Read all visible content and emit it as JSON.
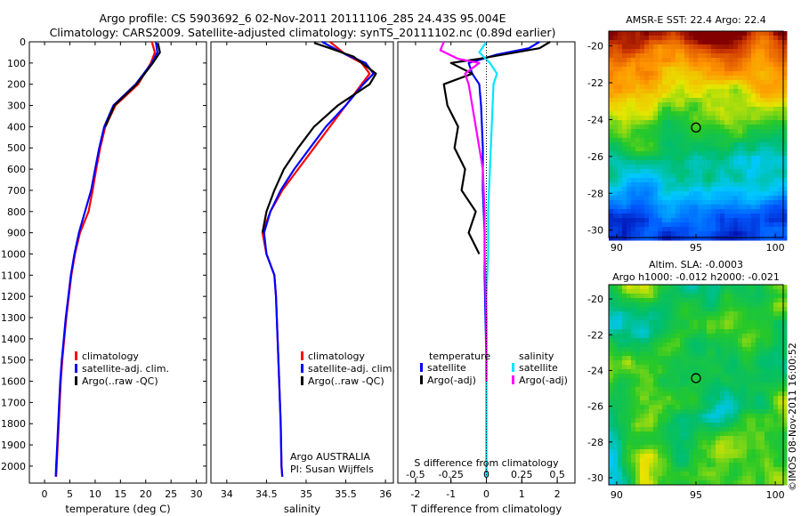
{
  "header": {
    "line1": "Argo profile: CS 5903692_6 02-Nov-2011 20111106_285 24.43S 95.004E",
    "line2": "Climatology: CARS2009. Satellite-adjusted climatology: synTS_20111102.nc (0.89d earlier)"
  },
  "footer_stamp": "©IMOS 08-Nov-2011 16:00:52",
  "colors": {
    "climatology": "#ff0000",
    "satellite": "#0000ff",
    "argo": "#000000",
    "salinity_satellite": "#00e5ff",
    "salinity_argo": "#ff00ff"
  },
  "chart_data": [
    {
      "type": "line",
      "id": "temperature",
      "xlabel": "temperature (deg C)",
      "ylabel": "",
      "xlim": [
        -3,
        32
      ],
      "ylim": [
        2080,
        0
      ],
      "xticks": [
        0,
        5,
        10,
        15,
        20,
        25,
        30
      ],
      "yticks": [
        0,
        100,
        200,
        300,
        400,
        500,
        600,
        700,
        800,
        900,
        1000,
        1100,
        1200,
        1300,
        1400,
        1500,
        1600,
        1700,
        1800,
        1900,
        2000
      ],
      "legend": [
        "climatology",
        "satellite-adj. clim.",
        "Argo(..raw -QC)"
      ],
      "series": [
        {
          "name": "climatology",
          "color": "#ff0000",
          "points": [
            [
              21.2,
              0
            ],
            [
              21.8,
              50
            ],
            [
              21.0,
              100
            ],
            [
              18.5,
              200
            ],
            [
              14.0,
              300
            ],
            [
              12.0,
              400
            ],
            [
              11.0,
              500
            ],
            [
              10.2,
              600
            ],
            [
              9.5,
              700
            ],
            [
              8.7,
              800
            ],
            [
              7.0,
              900
            ],
            [
              6.0,
              1000
            ],
            [
              5.3,
              1100
            ],
            [
              4.8,
              1200
            ],
            [
              4.3,
              1300
            ],
            [
              3.9,
              1400
            ],
            [
              3.5,
              1500
            ],
            [
              3.2,
              1600
            ],
            [
              3.0,
              1700
            ],
            [
              2.8,
              1800
            ],
            [
              2.6,
              1900
            ],
            [
              2.4,
              2000
            ],
            [
              2.3,
              2050
            ]
          ]
        },
        {
          "name": "satellite-adj. clim.",
          "color": "#0000ff",
          "points": [
            [
              22.0,
              0
            ],
            [
              22.3,
              50
            ],
            [
              21.2,
              100
            ],
            [
              18.0,
              200
            ],
            [
              13.6,
              300
            ],
            [
              11.8,
              400
            ],
            [
              10.8,
              500
            ],
            [
              10.0,
              600
            ],
            [
              9.2,
              700
            ],
            [
              8.0,
              800
            ],
            [
              6.8,
              900
            ],
            [
              5.9,
              1000
            ],
            [
              5.2,
              1100
            ],
            [
              4.7,
              1200
            ],
            [
              4.2,
              1300
            ],
            [
              3.8,
              1400
            ],
            [
              3.4,
              1500
            ],
            [
              3.1,
              1600
            ],
            [
              2.9,
              1700
            ],
            [
              2.7,
              1800
            ],
            [
              2.5,
              1900
            ],
            [
              2.3,
              2000
            ],
            [
              2.2,
              2050
            ]
          ]
        },
        {
          "name": "Argo(..raw -QC)",
          "color": "#000000",
          "points": [
            [
              22.4,
              5
            ],
            [
              22.8,
              50
            ],
            [
              21.4,
              100
            ],
            [
              18.2,
              200
            ],
            [
              13.8,
              300
            ],
            [
              12.0,
              400
            ]
          ]
        }
      ]
    },
    {
      "type": "line",
      "id": "salinity",
      "xlabel": "salinity",
      "xlim": [
        33.8,
        36.1
      ],
      "ylim": [
        2080,
        0
      ],
      "xticks": [
        34,
        34.5,
        35,
        35.5,
        36
      ],
      "xticklabels": [
        "34",
        "34.5",
        "35",
        "35.5",
        "36"
      ],
      "legend": [
        "climatology",
        "satellite-adj. clim.",
        "Argo(..raw -QC)"
      ],
      "annotation": [
        "Argo AUSTRALIA",
        "PI: Susan Wijffels"
      ],
      "series": [
        {
          "name": "climatology",
          "color": "#ff0000",
          "points": [
            [
              35.3,
              0
            ],
            [
              35.5,
              60
            ],
            [
              35.7,
              100
            ],
            [
              35.8,
              150
            ],
            [
              35.7,
              200
            ],
            [
              35.5,
              300
            ],
            [
              35.3,
              400
            ],
            [
              35.1,
              500
            ],
            [
              34.9,
              600
            ],
            [
              34.7,
              700
            ],
            [
              34.55,
              800
            ],
            [
              34.45,
              900
            ],
            [
              34.5,
              1000
            ],
            [
              34.6,
              1100
            ],
            [
              34.62,
              1200
            ],
            [
              34.64,
              1400
            ],
            [
              34.66,
              1600
            ],
            [
              34.68,
              1800
            ],
            [
              34.69,
              2000
            ],
            [
              34.7,
              2050
            ]
          ]
        },
        {
          "name": "satellite-adj. clim.",
          "color": "#0000ff",
          "points": [
            [
              35.2,
              0
            ],
            [
              35.5,
              60
            ],
            [
              35.75,
              100
            ],
            [
              35.85,
              150
            ],
            [
              35.72,
              200
            ],
            [
              35.5,
              300
            ],
            [
              35.25,
              400
            ],
            [
              35.05,
              500
            ],
            [
              34.85,
              600
            ],
            [
              34.68,
              700
            ],
            [
              34.55,
              800
            ],
            [
              34.47,
              900
            ],
            [
              34.5,
              1000
            ],
            [
              34.6,
              1100
            ],
            [
              34.62,
              1200
            ],
            [
              34.64,
              1400
            ],
            [
              34.66,
              1600
            ],
            [
              34.68,
              1800
            ],
            [
              34.69,
              2000
            ],
            [
              34.7,
              2050
            ]
          ]
        },
        {
          "name": "Argo(..raw -QC)",
          "color": "#000000",
          "points": [
            [
              35.1,
              5
            ],
            [
              35.3,
              30
            ],
            [
              35.6,
              70
            ],
            [
              35.88,
              150
            ],
            [
              35.8,
              200
            ],
            [
              35.4,
              300
            ],
            [
              35.1,
              400
            ],
            [
              34.9,
              500
            ],
            [
              34.72,
              600
            ],
            [
              34.6,
              700
            ],
            [
              34.5,
              800
            ],
            [
              34.45,
              900
            ]
          ]
        }
      ]
    },
    {
      "type": "line",
      "id": "differences",
      "xlabel": "T difference from climatology",
      "x2label": "S difference from climatology",
      "xlim": [
        -2.5,
        2.5
      ],
      "ylim": [
        2080,
        0
      ],
      "xticks": [
        -2,
        -1,
        0,
        1,
        2
      ],
      "x2ticks": [
        -0.5,
        -0.25,
        0,
        0.25,
        0.5
      ],
      "x2ticklabels": [
        "-0.5",
        "-0.25",
        "0",
        "0.25",
        "0.5"
      ],
      "legend_temperature_title": "temperature",
      "legend_salinity_title": "salinity",
      "legend": [
        "satellite",
        "Argo(-adj)",
        "satellite",
        "Argo(-adj)"
      ],
      "series": [
        {
          "name": "temperature satellite",
          "color": "#0000ff",
          "points": [
            [
              1.5,
              0
            ],
            [
              1.2,
              30
            ],
            [
              0.3,
              60
            ],
            [
              -0.5,
              100
            ],
            [
              -0.4,
              150
            ],
            [
              -0.2,
              200
            ],
            [
              -0.15,
              300
            ],
            [
              -0.1,
              500
            ],
            [
              -0.1,
              700
            ],
            [
              -0.05,
              900
            ],
            [
              -0.05,
              1100
            ],
            [
              0,
              1500
            ],
            [
              0,
              2050
            ]
          ]
        },
        {
          "name": "temperature Argo(-adj)",
          "color": "#000000",
          "points": [
            [
              1.8,
              0
            ],
            [
              1.5,
              30
            ],
            [
              -0.2,
              80
            ],
            [
              -1.0,
              100
            ],
            [
              -0.4,
              150
            ],
            [
              -1.2,
              200
            ],
            [
              -1.1,
              300
            ],
            [
              -0.8,
              400
            ],
            [
              -0.9,
              500
            ],
            [
              -0.6,
              600
            ],
            [
              -0.7,
              700
            ],
            [
              -0.3,
              800
            ],
            [
              -0.5,
              900
            ],
            [
              -0.2,
              1000
            ]
          ]
        },
        {
          "name": "salinity satellite",
          "color": "#00e5ff",
          "points": [
            [
              0,
              0
            ],
            [
              -0.2,
              50
            ],
            [
              0.1,
              100
            ],
            [
              0.3,
              150
            ],
            [
              0.2,
              200
            ],
            [
              0.15,
              400
            ],
            [
              0.1,
              600
            ],
            [
              0.05,
              800
            ],
            [
              0.05,
              1000
            ],
            [
              0,
              1200
            ],
            [
              0,
              1600
            ],
            [
              0,
              2050
            ]
          ]
        },
        {
          "name": "salinity Argo(-adj)",
          "color": "#ff00ff",
          "points": [
            [
              -1.2,
              0
            ],
            [
              -1.3,
              40
            ],
            [
              -0.8,
              80
            ],
            [
              -0.2,
              100
            ],
            [
              -0.6,
              150
            ],
            [
              -0.5,
              200
            ],
            [
              -0.3,
              400
            ],
            [
              -0.1,
              600
            ],
            [
              -0.05,
              800
            ],
            [
              -0.05,
              1000
            ],
            [
              0,
              1300
            ],
            [
              0,
              1600
            ]
          ]
        }
      ]
    },
    {
      "type": "heatmap",
      "id": "amsr-sst",
      "title": "AMSR-E SST: 22.4  Argo: 22.4",
      "xlim": [
        89.5,
        100.5
      ],
      "ylim": [
        -30.4,
        -19.2
      ],
      "xticks": [
        90,
        95,
        100
      ],
      "yticks": [
        -20,
        -22,
        -24,
        -26,
        -28,
        -30
      ],
      "marker": [
        95.0,
        -24.43
      ]
    },
    {
      "type": "heatmap",
      "id": "altim-sla",
      "title": "Altim. SLA: -0.0003",
      "subtitle": "Argo h1000: -0.012 h2000: -0.021",
      "xlim": [
        89.5,
        100.5
      ],
      "ylim": [
        -30.4,
        -19.2
      ],
      "xticks": [
        90,
        95,
        100
      ],
      "yticks": [
        -20,
        -22,
        -24,
        -26,
        -28,
        -30
      ],
      "marker": [
        95.0,
        -24.43
      ]
    }
  ]
}
